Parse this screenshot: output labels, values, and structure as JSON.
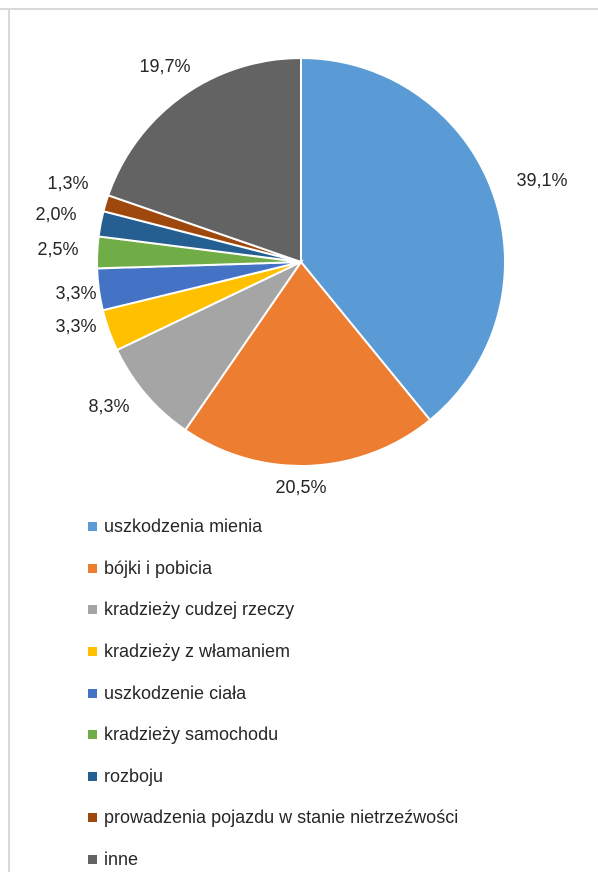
{
  "chart_data": {
    "type": "pie",
    "categories": [
      "uszkodzenia mienia",
      "bójki i pobicia",
      "kradzieży cudzej rzeczy",
      "kradzieży z włamaniem",
      "uszkodzenie ciała",
      "kradzieży samochodu",
      "rozboju",
      "prowadzenia pojazdu w stanie nietrzeźwości",
      "inne"
    ],
    "values": [
      39.1,
      20.5,
      8.3,
      3.3,
      3.3,
      2.5,
      2.0,
      1.3,
      19.7
    ],
    "data_labels": [
      "39,1%",
      "20,5%",
      "8,3%",
      "3,3%",
      "3,3%",
      "2,5%",
      "2,0%",
      "1,3%",
      "19,7%"
    ],
    "colors": [
      "#5b9bd5",
      "#ed7d31",
      "#a5a5a5",
      "#ffc000",
      "#4472c4",
      "#70ad47",
      "#255e91",
      "#9e480e",
      "#636363"
    ],
    "start_angle": "12 o'clock",
    "direction": "clockwise",
    "legend_position": "bottom-left"
  }
}
